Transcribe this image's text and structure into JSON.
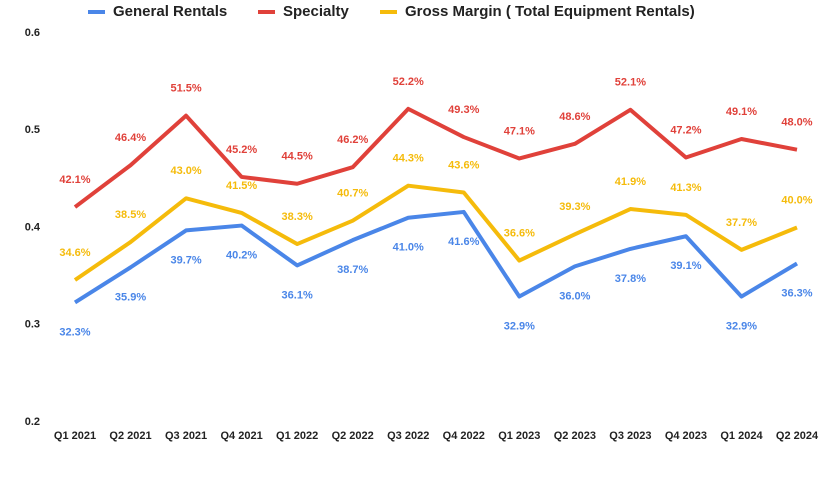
{
  "chart_data": {
    "type": "line",
    "categories": [
      "Q1 2021",
      "Q2 2021",
      "Q3 2021",
      "Q4 2021",
      "Q1 2022",
      "Q2 2022",
      "Q3 2022",
      "Q4 2022",
      "Q1 2023",
      "Q2 2023",
      "Q3 2023",
      "Q4 2023",
      "Q1 2024",
      "Q2 2024"
    ],
    "series": [
      {
        "name": "General Rentals",
        "color": "#4a86e8",
        "values": [
          0.323,
          0.359,
          0.397,
          0.402,
          0.361,
          0.387,
          0.41,
          0.416,
          0.329,
          0.36,
          0.378,
          0.391,
          0.329,
          0.363
        ],
        "value_labels": [
          "32.3%",
          "35.9%",
          "39.7%",
          "40.2%",
          "36.1%",
          "38.7%",
          "41.0%",
          "41.6%",
          "32.9%",
          "36.0%",
          "37.8%",
          "39.1%",
          "32.9%",
          "36.3%"
        ]
      },
      {
        "name": "Specialty",
        "color": "#e0413a",
        "values": [
          0.421,
          0.464,
          0.515,
          0.452,
          0.445,
          0.462,
          0.522,
          0.493,
          0.471,
          0.486,
          0.521,
          0.472,
          0.491,
          0.48
        ],
        "value_labels": [
          "42.1%",
          "46.4%",
          "51.5%",
          "45.2%",
          "44.5%",
          "46.2%",
          "52.2%",
          "49.3%",
          "47.1%",
          "48.6%",
          "52.1%",
          "47.2%",
          "49.1%",
          "48.0%"
        ]
      },
      {
        "name": "Gross Margin ( Total Equipment Rentals)",
        "color": "#f5bb0b",
        "values": [
          0.346,
          0.385,
          0.43,
          0.415,
          0.383,
          0.407,
          0.443,
          0.436,
          0.366,
          0.393,
          0.419,
          0.413,
          0.377,
          0.4
        ],
        "value_labels": [
          "34.6%",
          "38.5%",
          "43.0%",
          "41.5%",
          "38.3%",
          "40.7%",
          "44.3%",
          "43.6%",
          "36.6%",
          "39.3%",
          "41.9%",
          "41.3%",
          "37.7%",
          "40.0%"
        ]
      }
    ],
    "ylim": [
      0.2,
      0.6
    ],
    "yticks": [
      0.2,
      0.3,
      0.4,
      0.5,
      0.6
    ],
    "grid": false
  }
}
